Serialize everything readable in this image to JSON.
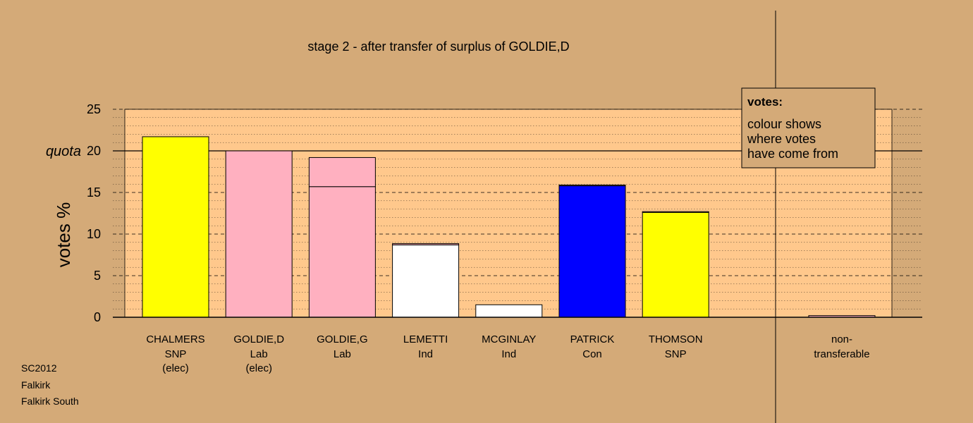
{
  "chart_data": {
    "type": "bar",
    "title": "stage 2 - after transfer of surplus of GOLDIE,D",
    "ylabel": "votes %",
    "ylim": [
      0,
      25
    ],
    "yticks": [
      0,
      5,
      10,
      15,
      20,
      25
    ],
    "quota": {
      "label": "quota",
      "value": 20
    },
    "categories": [
      {
        "name": "CHALMERS",
        "party": "SNP",
        "status": "(elec)"
      },
      {
        "name": "GOLDIE,D",
        "party": "Lab",
        "status": "(elec)"
      },
      {
        "name": "GOLDIE,G",
        "party": "Lab",
        "status": ""
      },
      {
        "name": "LEMETTI",
        "party": "Ind",
        "status": ""
      },
      {
        "name": "MCGINLAY",
        "party": "Ind",
        "status": ""
      },
      {
        "name": "PATRICK",
        "party": "Con",
        "status": ""
      },
      {
        "name": "THOMSON",
        "party": "SNP",
        "status": ""
      }
    ],
    "series": [
      {
        "values": [
          21.7,
          20.0,
          15.7,
          8.7,
          1.5,
          15.8,
          12.6
        ],
        "colors": [
          "#ffff00",
          "#ffb0c0",
          "#ffb0c0",
          "#ffffff",
          "#ffffff",
          "#0000ff",
          "#ffff00"
        ]
      },
      {
        "values": [
          0,
          0,
          3.5,
          0.15,
          0,
          0.1,
          0.1
        ],
        "colors": [
          "#ffb0c0",
          "#ffb0c0",
          "#ffb0c0",
          "#ffb0c0",
          "#ffb0c0",
          "#ffb0c0",
          "#ffb0c0"
        ]
      }
    ],
    "nontransferable": {
      "label_line1": "non-",
      "label_line2": "transferable",
      "value": 0.2
    },
    "legend": {
      "title": "votes:",
      "lines": [
        "colour shows",
        "where votes",
        "have come from"
      ],
      "placement": "top-right"
    },
    "grid": true,
    "colors": {
      "background": "#d4aa78",
      "plot_background": "#ffc88c"
    }
  },
  "footer": {
    "lines": [
      "SC2012",
      "Falkirk",
      "Falkirk South"
    ]
  }
}
